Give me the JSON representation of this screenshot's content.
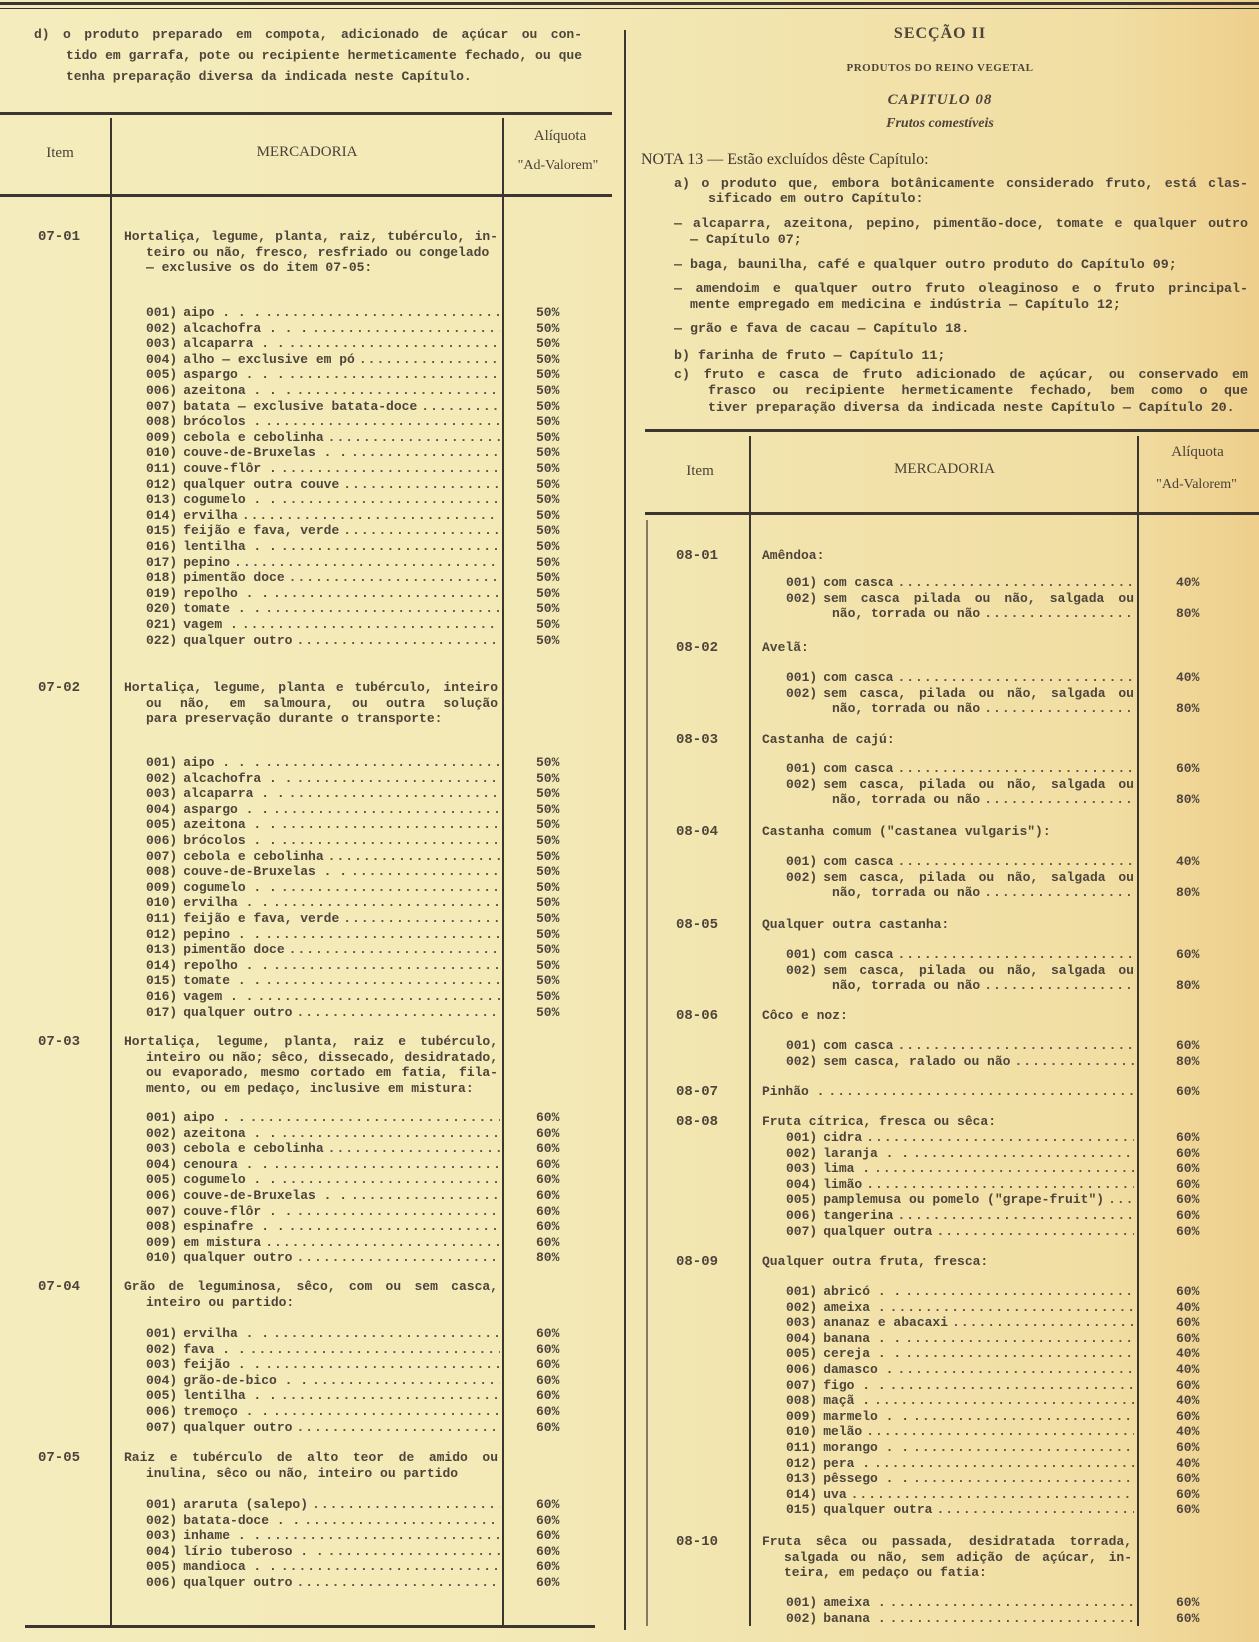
{
  "left": {
    "intro": [
      "d)  o produto preparado em compota, adicionado de açúcar ou con-",
      "tido em garrafa, pote ou recipiente hermeticamente fechado, ou que",
      "tenha preparação diversa da indicada neste Capítulo."
    ],
    "header": {
      "item": "Item",
      "mercadoria": "MERCADORIA",
      "aliquota": "Alíquota",
      "ad_valorem": "\"Ad-Valorem\""
    },
    "groups": [
      {
        "code": "07-01",
        "desc": [
          "Hortaliça, legume, planta, raiz, tubérculo, in-",
          "teiro ou não, fresco, resfriado ou congelado",
          "— exclusive os do item 07-05:"
        ],
        "items": [
          {
            "code": "001)",
            "lines": [
              "aipo . . ."
            ],
            "rate": "50%"
          },
          {
            "code": "002)",
            "lines": [
              "alcachofra . . ."
            ],
            "rate": "50%"
          },
          {
            "code": "003)",
            "lines": [
              "alcaparra . ."
            ],
            "rate": "50%"
          },
          {
            "code": "004)",
            "lines": [
              "alho — exclusive em pó"
            ],
            "rate": "50%"
          },
          {
            "code": "005)",
            "lines": [
              "aspargo . . ."
            ],
            "rate": "50%"
          },
          {
            "code": "006)",
            "lines": [
              "azeitona . . ."
            ],
            "rate": "50%"
          },
          {
            "code": "007)",
            "lines": [
              "batata — exclusive batata-doce"
            ],
            "rate": "50%"
          },
          {
            "code": "008)",
            "lines": [
              "brócolos ."
            ],
            "rate": "50%"
          },
          {
            "code": "009)",
            "lines": [
              "cebola e cebolinha"
            ],
            "rate": "50%"
          },
          {
            "code": "010)",
            "lines": [
              "couve-de-Bruxelas . ."
            ],
            "rate": "50%"
          },
          {
            "code": "011)",
            "lines": [
              "couve-flôr ."
            ],
            "rate": "50%"
          },
          {
            "code": "012)",
            "lines": [
              "qualquer outra couve"
            ],
            "rate": "50%"
          },
          {
            "code": "013)",
            "lines": [
              "cogumelo . ."
            ],
            "rate": "50%"
          },
          {
            "code": "014)",
            "lines": [
              "ervilha"
            ],
            "rate": "50%"
          },
          {
            "code": "015)",
            "lines": [
              "feijão e fava, verde"
            ],
            "rate": "50%"
          },
          {
            "code": "016)",
            "lines": [
              "lentilha . ."
            ],
            "rate": "50%"
          },
          {
            "code": "017)",
            "lines": [
              "pepino"
            ],
            "rate": "50%"
          },
          {
            "code": "018)",
            "lines": [
              "pimentão doce"
            ],
            "rate": "50%"
          },
          {
            "code": "019)",
            "lines": [
              "repolho . ."
            ],
            "rate": "50%"
          },
          {
            "code": "020)",
            "lines": [
              "tomate . ."
            ],
            "rate": "50%"
          },
          {
            "code": "021)",
            "lines": [
              "vagem ."
            ],
            "rate": "50%"
          },
          {
            "code": "022)",
            "lines": [
              "qualquer outro"
            ],
            "rate": "50%"
          }
        ]
      },
      {
        "code": "07-02",
        "desc": [
          "Hortaliça, legume, planta e tubérculo, inteiro",
          "ou não, em salmoura, ou outra solução",
          "para preservação durante o transporte:"
        ],
        "items": [
          {
            "code": "001)",
            "lines": [
              "aipo . . ."
            ],
            "rate": "50%"
          },
          {
            "code": "002)",
            "lines": [
              "alcachofra . ."
            ],
            "rate": "50%"
          },
          {
            "code": "003)",
            "lines": [
              "alcaparra . ."
            ],
            "rate": "50%"
          },
          {
            "code": "004)",
            "lines": [
              "aspargo . ."
            ],
            "rate": "50%"
          },
          {
            "code": "005)",
            "lines": [
              "azeitona . ."
            ],
            "rate": "50%"
          },
          {
            "code": "006)",
            "lines": [
              "brócolos . ."
            ],
            "rate": "50%"
          },
          {
            "code": "007)",
            "lines": [
              "cebola e cebolinha"
            ],
            "rate": "50%"
          },
          {
            "code": "008)",
            "lines": [
              "couve-de-Bruxelas . ."
            ],
            "rate": "50%"
          },
          {
            "code": "009)",
            "lines": [
              "cogumelo . ."
            ],
            "rate": "50%"
          },
          {
            "code": "010)",
            "lines": [
              "ervilha . ."
            ],
            "rate": "50%"
          },
          {
            "code": "011)",
            "lines": [
              "feijão e fava, verde"
            ],
            "rate": "50%"
          },
          {
            "code": "012)",
            "lines": [
              "pepino . ."
            ],
            "rate": "50%"
          },
          {
            "code": "013)",
            "lines": [
              "pimentão doce"
            ],
            "rate": "50%"
          },
          {
            "code": "014)",
            "lines": [
              "repolho . ."
            ],
            "rate": "50%"
          },
          {
            "code": "015)",
            "lines": [
              "tomate . ."
            ],
            "rate": "50%"
          },
          {
            "code": "016)",
            "lines": [
              "vagem . ."
            ],
            "rate": "50%"
          },
          {
            "code": "017)",
            "lines": [
              "qualquer outro"
            ],
            "rate": "50%"
          }
        ]
      },
      {
        "code": "07-03",
        "desc": [
          "Hortaliça, legume, planta, raiz e tubérculo,",
          "inteiro ou não; sêco, dissecado, desidratado,",
          "ou evaporado, mesmo cortado em fatia, fila-",
          "mento, ou em pedaço, inclusive em mistura:"
        ],
        "items": [
          {
            "code": "001)",
            "lines": [
              "aipo . ."
            ],
            "rate": "60%"
          },
          {
            "code": "002)",
            "lines": [
              "azeitona . ."
            ],
            "rate": "60%"
          },
          {
            "code": "003)",
            "lines": [
              "cebola e cebolinha"
            ],
            "rate": "60%"
          },
          {
            "code": "004)",
            "lines": [
              "cenoura . ."
            ],
            "rate": "60%"
          },
          {
            "code": "005)",
            "lines": [
              "cogumelo . ."
            ],
            "rate": "60%"
          },
          {
            "code": "006)",
            "lines": [
              "couve-de-Bruxelas . ."
            ],
            "rate": "60%"
          },
          {
            "code": "007)",
            "lines": [
              "couve-flôr . ."
            ],
            "rate": "60%"
          },
          {
            "code": "008)",
            "lines": [
              "espinafre . ."
            ],
            "rate": "60%"
          },
          {
            "code": "009)",
            "lines": [
              "em mistura"
            ],
            "rate": "60%"
          },
          {
            "code": "010)",
            "lines": [
              "qualquer outro"
            ],
            "rate": "80%"
          }
        ]
      },
      {
        "code": "07-04",
        "desc": [
          "Grão de leguminosa, sêco, com ou sem casca,",
          "inteiro ou partido:"
        ],
        "items": [
          {
            "code": "001)",
            "lines": [
              "ervilha . ."
            ],
            "rate": "60%"
          },
          {
            "code": "002)",
            "lines": [
              "fava . ."
            ],
            "rate": "60%"
          },
          {
            "code": "003)",
            "lines": [
              "feijão . ."
            ],
            "rate": "60%"
          },
          {
            "code": "004)",
            "lines": [
              "grão-de-bico . ."
            ],
            "rate": "60%"
          },
          {
            "code": "005)",
            "lines": [
              "lentilha . ."
            ],
            "rate": "60%"
          },
          {
            "code": "006)",
            "lines": [
              "tremoço . ."
            ],
            "rate": "60%"
          },
          {
            "code": "007)",
            "lines": [
              "qualquer outro"
            ],
            "rate": "60%"
          }
        ]
      },
      {
        "code": "07-05",
        "desc": [
          "Raiz e tubérculo de alto teor de amido ou",
          "inulina, sêco ou não, inteiro ou partido"
        ],
        "items": [
          {
            "code": "001)",
            "lines": [
              "araruta (salepo)"
            ],
            "rate": "60%"
          },
          {
            "code": "002)",
            "lines": [
              "batata-doce . ."
            ],
            "rate": "60%"
          },
          {
            "code": "003)",
            "lines": [
              "inhame . ."
            ],
            "rate": "60%"
          },
          {
            "code": "004)",
            "lines": [
              "lírio tuberoso . ."
            ],
            "rate": "60%"
          },
          {
            "code": "005)",
            "lines": [
              "mandioca . ."
            ],
            "rate": "60%"
          },
          {
            "code": "006)",
            "lines": [
              "qualquer outro"
            ],
            "rate": "60%"
          }
        ]
      }
    ]
  },
  "right": {
    "section": "SECÇÃO II",
    "section_subtitle": "PRODUTOS DO REINO VEGETAL",
    "chapter": "CAPITULO 08",
    "chapter_subtitle": "Frutos comestíveis",
    "note_title": "NOTA 13 — Estão excluídos dêste Capítulo:",
    "notes": [
      {
        "lines": [
          "a)  o produto que, embora botânicamente considerado fruto, está clas-",
          "sificado em outro Capítulo:"
        ]
      },
      {
        "lines": [
          "— alcaparra, azeitona, pepino, pimentão-doce, tomate e qualquer outro",
          "— Capítulo 07;"
        ]
      },
      {
        "lines": [
          "— baga, baunilha, café e qualquer outro produto do Capítulo 09;"
        ]
      },
      {
        "lines": [
          "— amendoim e qualquer outro fruto oleaginoso e o fruto principal-",
          "mente empregado em medicina e indústria — Capítulo 12;"
        ]
      },
      {
        "lines": [
          "— grão e fava de cacau — Capítulo 18."
        ]
      },
      {
        "lines": [
          "b)  farinha de fruto — Capítulo 11;"
        ]
      },
      {
        "lines": [
          "c)  fruto e casca de fruto adicionado de açúcar, ou conservado em",
          "frasco ou recipiente hermeticamente fechado, bem como o que",
          "tiver preparação diversa da indicada neste Capítulo — Capítulo 20."
        ]
      }
    ],
    "header": {
      "item": "Item",
      "mercadoria": "MERCADORIA",
      "aliquota": "Alíquota",
      "ad_valorem": "\"Ad-Valorem\""
    },
    "groups": [
      {
        "code": "08-01",
        "desc": [
          "Amêndoa:"
        ],
        "items": [
          {
            "code": "001)",
            "lines": [
              "com casca"
            ],
            "rate": "40%"
          },
          {
            "code": "002)",
            "lines": [
              "sem casca pilada ou não, salgada ou",
              "não, torrada ou não"
            ],
            "rate": "80%"
          }
        ]
      },
      {
        "code": "08-02",
        "desc": [
          "Avelã:"
        ],
        "items": [
          {
            "code": "001)",
            "lines": [
              "com casca"
            ],
            "rate": "40%"
          },
          {
            "code": "002)",
            "lines": [
              "sem casca, pilada ou não, salgada ou",
              "não, torrada ou não"
            ],
            "rate": "80%"
          }
        ]
      },
      {
        "code": "08-03",
        "desc": [
          "Castanha de cajú:"
        ],
        "items": [
          {
            "code": "001)",
            "lines": [
              "com casca"
            ],
            "rate": "60%"
          },
          {
            "code": "002)",
            "lines": [
              "sem casca, pilada ou não, salgada ou",
              "não, torrada ou não"
            ],
            "rate": "80%"
          }
        ]
      },
      {
        "code": "08-04",
        "desc": [
          "Castanha comum (\"castanea vulgaris\"):"
        ],
        "items": [
          {
            "code": "001)",
            "lines": [
              "com casca"
            ],
            "rate": "40%"
          },
          {
            "code": "002)",
            "lines": [
              "sem casca, pilada ou não, salgada ou",
              "não, torrada ou não"
            ],
            "rate": "80%"
          }
        ]
      },
      {
        "code": "08-05",
        "desc": [
          "Qualquer outra castanha:"
        ],
        "items": [
          {
            "code": "001)",
            "lines": [
              "com casca"
            ],
            "rate": "60%"
          },
          {
            "code": "002)",
            "lines": [
              "sem casca, pilada ou não, salgada ou",
              "não, torrada ou não"
            ],
            "rate": "80%"
          }
        ]
      },
      {
        "code": "08-06",
        "desc": [
          "Côco e noz:"
        ],
        "items": [
          {
            "code": "001)",
            "lines": [
              "com casca"
            ],
            "rate": "60%"
          },
          {
            "code": "002)",
            "lines": [
              "sem casca, ralado ou não"
            ],
            "rate": "80%"
          }
        ]
      },
      {
        "code": "08-07",
        "desc": [
          "Pinhão ."
        ],
        "rate": "60%",
        "items": []
      },
      {
        "code": "08-08",
        "desc": [
          "Fruta cítrica, fresca ou sêca:"
        ],
        "items": [
          {
            "code": "001)",
            "lines": [
              "cidra"
            ],
            "rate": "60%"
          },
          {
            "code": "002)",
            "lines": [
              "laranja . ."
            ],
            "rate": "60%"
          },
          {
            "code": "003)",
            "lines": [
              "lima ."
            ],
            "rate": "60%"
          },
          {
            "code": "004)",
            "lines": [
              "limão"
            ],
            "rate": "60%"
          },
          {
            "code": "005)",
            "lines": [
              "pamplemusa ou pomelo (\"grape-fruit\")"
            ],
            "rate": "60%"
          },
          {
            "code": "006)",
            "lines": [
              "tangerina"
            ],
            "rate": "60%"
          },
          {
            "code": "007)",
            "lines": [
              "qualquer outra"
            ],
            "rate": "60%"
          }
        ]
      },
      {
        "code": "08-09",
        "desc": [
          "Qualquer outra fruta, fresca:"
        ],
        "items": [
          {
            "code": "001)",
            "lines": [
              "abricó . ."
            ],
            "rate": "60%"
          },
          {
            "code": "002)",
            "lines": [
              "ameixa ."
            ],
            "rate": "40%"
          },
          {
            "code": "003)",
            "lines": [
              "ananaz e abacaxi"
            ],
            "rate": "60%"
          },
          {
            "code": "004)",
            "lines": [
              "banana . ."
            ],
            "rate": "60%"
          },
          {
            "code": "005)",
            "lines": [
              "cereja . ."
            ],
            "rate": "40%"
          },
          {
            "code": "006)",
            "lines": [
              "damasco ."
            ],
            "rate": "40%"
          },
          {
            "code": "007)",
            "lines": [
              "figo . ."
            ],
            "rate": "60%"
          },
          {
            "code": "008)",
            "lines": [
              "maçã ."
            ],
            "rate": "40%"
          },
          {
            "code": "009)",
            "lines": [
              "marmelo . ."
            ],
            "rate": "60%"
          },
          {
            "code": "010)",
            "lines": [
              "melão"
            ],
            "rate": "40%"
          },
          {
            "code": "011)",
            "lines": [
              "morango . ."
            ],
            "rate": "60%"
          },
          {
            "code": "012)",
            "lines": [
              "pera ."
            ],
            "rate": "40%"
          },
          {
            "code": "013)",
            "lines": [
              "pêssego . ."
            ],
            "rate": "60%"
          },
          {
            "code": "014)",
            "lines": [
              "uva"
            ],
            "rate": "60%"
          },
          {
            "code": "015)",
            "lines": [
              "qualquer outra"
            ],
            "rate": "60%"
          }
        ]
      },
      {
        "code": "08-10",
        "desc": [
          "Fruta sêca ou passada, desidratada torrada,",
          "salgada ou não, sem adição de açúcar, in-",
          "teira, em pedaço ou fatia:"
        ],
        "items": [
          {
            "code": "001)",
            "lines": [
              "ameixa ."
            ],
            "rate": "60%"
          },
          {
            "code": "002)",
            "lines": [
              "banana ."
            ],
            "rate": "60%"
          }
        ]
      }
    ]
  }
}
